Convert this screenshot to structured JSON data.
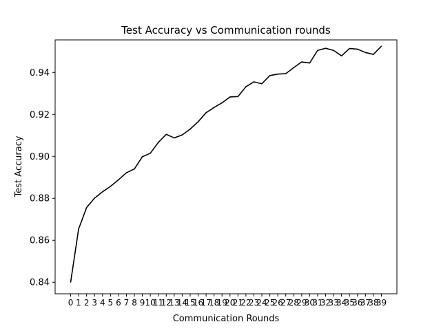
{
  "chart_data": {
    "type": "line",
    "title": "Test Accuracy vs Communication rounds",
    "xlabel": "Communication Rounds",
    "ylabel": "Test Accuracy",
    "x_ticks": [
      "0",
      "1",
      "2",
      "3",
      "4",
      "5",
      "6",
      "7",
      "8",
      "9",
      "10",
      "11",
      "12",
      "13",
      "14",
      "15",
      "16",
      "17",
      "18",
      "19",
      "20",
      "21",
      "22",
      "23",
      "24",
      "25",
      "26",
      "27",
      "28",
      "29",
      "30",
      "31",
      "32",
      "33",
      "34",
      "35",
      "36",
      "37",
      "38",
      "39"
    ],
    "y_ticks": [
      "0.84",
      "0.86",
      "0.88",
      "0.90",
      "0.92",
      "0.94"
    ],
    "xlim": [
      -1.95,
      40.95
    ],
    "ylim": [
      0.8345,
      0.9555
    ],
    "grid": false,
    "line_color": "#000000",
    "series": [
      {
        "x": [
          0,
          1,
          2,
          3,
          4,
          5,
          6,
          7,
          8,
          9,
          10,
          11,
          12,
          13,
          14,
          15,
          16,
          17,
          18,
          19,
          20,
          21,
          22,
          23,
          24,
          25,
          26,
          27,
          28,
          29,
          30,
          31,
          32,
          33,
          34,
          35,
          36,
          37,
          38,
          39
        ],
        "values": [
          0.8401,
          0.8654,
          0.8756,
          0.8801,
          0.8831,
          0.8857,
          0.8888,
          0.8922,
          0.894,
          0.8998,
          0.9015,
          0.9066,
          0.9105,
          0.9088,
          0.9102,
          0.913,
          0.9165,
          0.9208,
          0.9233,
          0.9255,
          0.9283,
          0.9285,
          0.9332,
          0.9355,
          0.9346,
          0.9385,
          0.9392,
          0.9394,
          0.9423,
          0.945,
          0.9445,
          0.9505,
          0.9515,
          0.9505,
          0.9479,
          0.9514,
          0.9511,
          0.9495,
          0.9486,
          0.9525
        ]
      }
    ]
  }
}
